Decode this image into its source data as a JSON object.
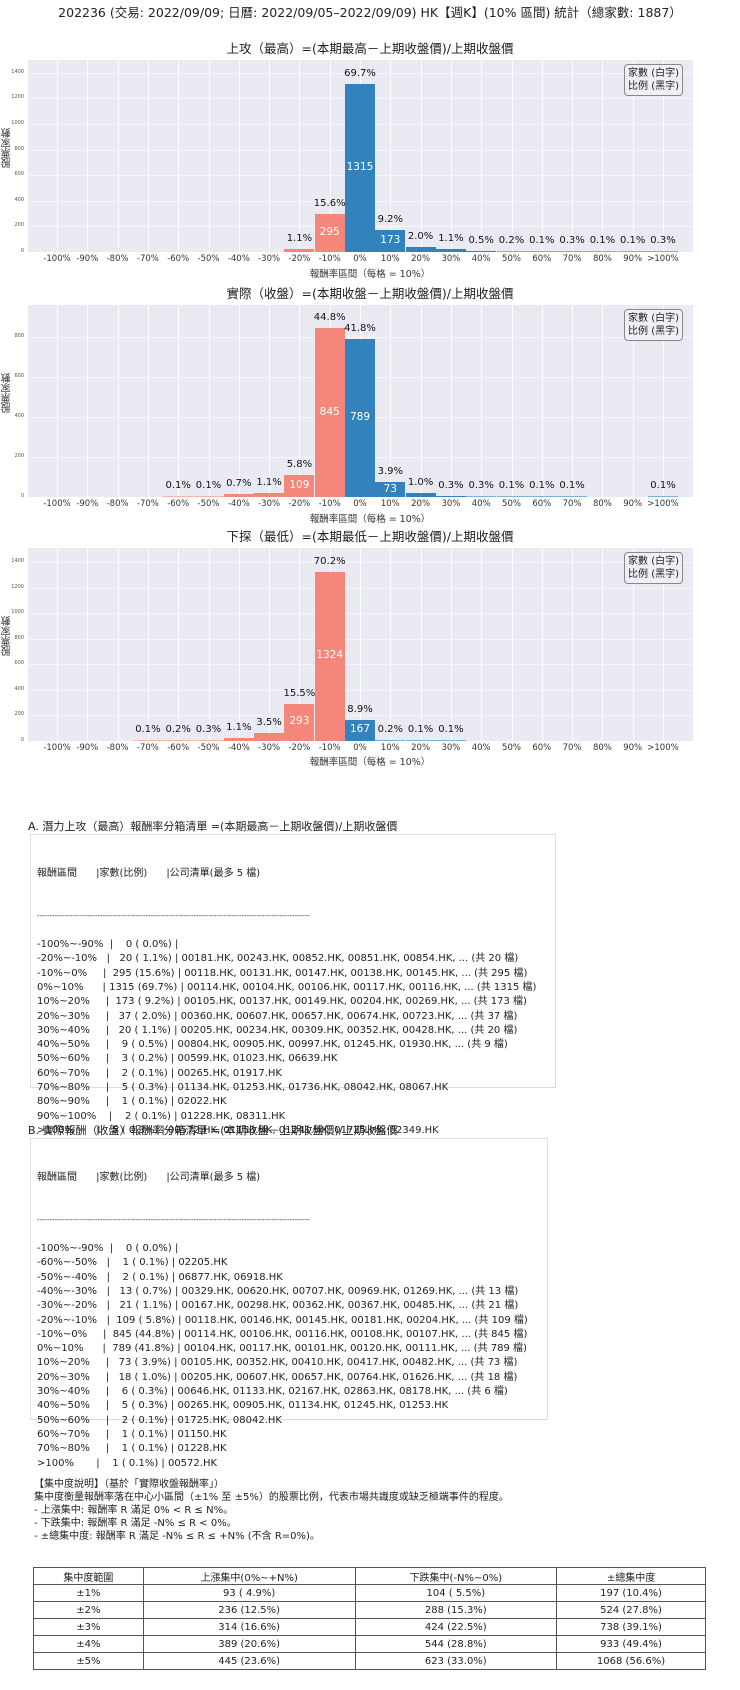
{
  "main_title": "202236 (交易: 2022/09/09; 日曆: 2022/09/05–2022/09/09) HK【週K】(10% 區間) 統計（總家數: 1887）",
  "legend": {
    "line1": "家數 (白字)",
    "line2": "比例 (黑字)"
  },
  "chart_data": [
    {
      "type": "bar",
      "title": "上攻（最高）=(本期最高－上期收盤價)/上期收盤價",
      "xlabel": "報酬率區間（每格 = 10%）",
      "ylabel": "股票家數",
      "categories": [
        "-100%",
        "-90%",
        "-80%",
        "-70%",
        "-60%",
        "-50%",
        "-40%",
        "-30%",
        "-20%",
        "-10%",
        "0%",
        "10%",
        "20%",
        "30%",
        "40%",
        "50%",
        "60%",
        "70%",
        "80%",
        "90%",
        ">100%"
      ],
      "values": [
        0,
        0,
        0,
        0,
        0,
        0,
        0,
        0,
        20,
        295,
        1315,
        173,
        37,
        20,
        9,
        3,
        2,
        5,
        1,
        2,
        5
      ],
      "pct_labels": [
        "",
        "",
        "",
        "",
        "",
        "",
        "",
        "",
        "1.1%",
        "15.6%",
        "69.7%",
        "9.2%",
        "2.0%",
        "1.1%",
        "0.5%",
        "0.2%",
        "0.1%",
        "0.3%",
        "0.1%",
        "0.1%",
        "0.3%"
      ],
      "yticks": [
        0,
        200,
        400,
        600,
        800,
        1000,
        1200,
        1400
      ],
      "ylim": [
        0,
        1500
      ],
      "grid": true,
      "legend_position": "upper right"
    },
    {
      "type": "bar",
      "title": "實際（收盤）=(本期收盤－上期收盤價)/上期收盤價",
      "xlabel": "報酬率區間（每格 = 10%）",
      "ylabel": "股票家數",
      "categories": [
        "-100%",
        "-90%",
        "-80%",
        "-70%",
        "-60%",
        "-50%",
        "-40%",
        "-30%",
        "-20%",
        "-10%",
        "0%",
        "10%",
        "20%",
        "30%",
        "40%",
        "50%",
        "60%",
        "70%",
        "80%",
        "90%",
        ">100%"
      ],
      "values": [
        0,
        0,
        0,
        0,
        1,
        2,
        13,
        21,
        109,
        845,
        789,
        73,
        18,
        6,
        5,
        2,
        1,
        1,
        0,
        0,
        1
      ],
      "pct_labels": [
        "",
        "",
        "",
        "",
        "0.1%",
        "0.1%",
        "0.7%",
        "1.1%",
        "5.8%",
        "44.8%",
        "41.8%",
        "3.9%",
        "1.0%",
        "0.3%",
        "0.3%",
        "0.1%",
        "0.1%",
        "0.1%",
        "",
        "",
        "0.1%"
      ],
      "yticks": [
        0,
        200,
        400,
        600,
        800
      ],
      "ylim": [
        0,
        960
      ],
      "grid": true,
      "legend_position": "upper right"
    },
    {
      "type": "bar",
      "title": "下探（最低）=(本期最低－上期收盤價)/上期收盤價",
      "xlabel": "報酬率區間（每格 = 10%）",
      "ylabel": "股票家數",
      "categories": [
        "-100%",
        "-90%",
        "-80%",
        "-70%",
        "-60%",
        "-50%",
        "-40%",
        "-30%",
        "-20%",
        "-10%",
        "0%",
        "10%",
        "20%",
        "30%",
        "40%",
        "50%",
        "60%",
        "70%",
        "80%",
        "90%",
        ">100%"
      ],
      "values": [
        0,
        0,
        0,
        1,
        3,
        6,
        21,
        66,
        293,
        1324,
        167,
        4,
        2,
        1,
        0,
        0,
        0,
        0,
        0,
        0,
        0
      ],
      "pct_labels": [
        "",
        "",
        "",
        "0.1%",
        "0.2%",
        "0.3%",
        "1.1%",
        "3.5%",
        "15.5%",
        "70.2%",
        "8.9%",
        "0.2%",
        "0.1%",
        "0.1%",
        "",
        "",
        "",
        "",
        "",
        "",
        ""
      ],
      "yticks": [
        0,
        200,
        400,
        600,
        800,
        1000,
        1200,
        1400
      ],
      "ylim": [
        0,
        1510
      ],
      "grid": true,
      "legend_position": "upper right"
    }
  ],
  "section_a": {
    "title": "A. 潛力上攻（最高）報酬率分箱清單 =(本期最高－上期收盤價)/上期收盤價",
    "header": "報酬區間      |家數(比例)      |公司清單(最多 5 檔)",
    "divider": "------------------------------------------------------------------------------------------------------------",
    "rows": [
      "-100%~-90%  |    0 ( 0.0%) |",
      "-20%~-10%   |   20 ( 1.1%) | 00181.HK, 00243.HK, 00852.HK, 00851.HK, 00854.HK, ... (共 20 檔)",
      "-10%~0%     |  295 (15.6%) | 00118.HK, 00131.HK, 00147.HK, 00138.HK, 00145.HK, ... (共 295 檔)",
      "0%~10%      | 1315 (69.7%) | 00114.HK, 00104.HK, 00106.HK, 00117.HK, 00116.HK, ... (共 1315 檔)",
      "10%~20%     |  173 ( 9.2%) | 00105.HK, 00137.HK, 00149.HK, 00204.HK, 00269.HK, ... (共 173 檔)",
      "20%~30%     |   37 ( 2.0%) | 00360.HK, 00607.HK, 00657.HK, 00674.HK, 00723.HK, ... (共 37 檔)",
      "30%~40%     |   20 ( 1.1%) | 00205.HK, 00234.HK, 00309.HK, 00352.HK, 00428.HK, ... (共 20 檔)",
      "40%~50%     |    9 ( 0.5%) | 00804.HK, 00905.HK, 00997.HK, 01245.HK, 01930.HK, ... (共 9 檔)",
      "50%~60%     |    3 ( 0.2%) | 00599.HK, 01023.HK, 06639.HK",
      "60%~70%     |    2 ( 0.1%) | 00265.HK, 01917.HK",
      "70%~80%     |    5 ( 0.3%) | 01134.HK, 01253.HK, 01736.HK, 08042.HK, 08067.HK",
      "80%~90%     |    1 ( 0.1%) | 02022.HK",
      "90%~100%    |    2 ( 0.1%) | 01228.HK, 08311.HK",
      ">100%       |    5 ( 0.3%) | 00572.HK, 01150.HK, 01241.HK, 01725.HK, 02349.HK"
    ]
  },
  "section_b": {
    "title": "B. 實際報酬（收盤）報酬率分箱清單 =(本期收盤－上期收盤價)/上期收盤價",
    "header": "報酬區間      |家數(比例)      |公司清單(最多 5 檔)",
    "divider": "------------------------------------------------------------------------------------------------------------",
    "rows": [
      "-100%~-90%  |    0 ( 0.0%) |",
      "-60%~-50%   |    1 ( 0.1%) | 02205.HK",
      "-50%~-40%   |    2 ( 0.1%) | 06877.HK, 06918.HK",
      "-40%~-30%   |   13 ( 0.7%) | 00329.HK, 00620.HK, 00707.HK, 00969.HK, 01269.HK, ... (共 13 檔)",
      "-30%~-20%   |   21 ( 1.1%) | 00167.HK, 00298.HK, 00362.HK, 00367.HK, 00485.HK, ... (共 21 檔)",
      "-20%~-10%   |  109 ( 5.8%) | 00118.HK, 00146.HK, 00145.HK, 00181.HK, 00204.HK, ... (共 109 檔)",
      "-10%~0%     |  845 (44.8%) | 00114.HK, 00106.HK, 00116.HK, 00108.HK, 00107.HK, ... (共 845 檔)",
      "0%~10%      |  789 (41.8%) | 00104.HK, 00117.HK, 00101.HK, 00120.HK, 00111.HK, ... (共 789 檔)",
      "10%~20%     |   73 ( 3.9%) | 00105.HK, 00352.HK, 00410.HK, 00417.HK, 00482.HK, ... (共 73 檔)",
      "20%~30%     |   18 ( 1.0%) | 00205.HK, 00607.HK, 00657.HK, 00764.HK, 01626.HK, ... (共 18 檔)",
      "30%~40%     |    6 ( 0.3%) | 00646.HK, 01133.HK, 02167.HK, 02863.HK, 08178.HK, ... (共 6 檔)",
      "40%~50%     |    5 ( 0.3%) | 00265.HK, 00905.HK, 01134.HK, 01245.HK, 01253.HK",
      "50%~60%     |    2 ( 0.1%) | 01725.HK, 08042.HK",
      "60%~70%     |    1 ( 0.1%) | 01150.HK",
      "70%~80%     |    1 ( 0.1%) | 01228.HK",
      ">100%       |    1 ( 0.1%) | 00572.HK"
    ]
  },
  "concentration": {
    "heading": "【集中度說明】（基於「實際收盤報酬率」）",
    "desc": "集中度衡量報酬率落在中心小區間（±1% 至 ±5%）的股票比例，代表市場共識度或缺乏極端事件的程度。",
    "bullets": [
      " - 上漲集中: 報酬率 R 滿足 0% < R ≤ N%。",
      " - 下跌集中: 報酬率 R 滿足 -N% ≤ R < 0%。",
      " - ±總集中度: 報酬率 R 滿足 -N% ≤ R ≤ +N% (不含 R=0%)。"
    ],
    "table": {
      "headers": [
        "集中度範圍",
        "上漲集中(0%~+N%)",
        "下跌集中(-N%~0%)",
        "±總集中度"
      ],
      "rows": [
        [
          "±1%",
          "93 ( 4.9%)",
          "104 ( 5.5%)",
          "197 (10.4%)"
        ],
        [
          "±2%",
          "236 (12.5%)",
          "288 (15.3%)",
          "524 (27.8%)"
        ],
        [
          "±3%",
          "314 (16.6%)",
          "424 (22.5%)",
          "738 (39.1%)"
        ],
        [
          "±4%",
          "389 (20.6%)",
          "544 (28.8%)",
          "933 (49.4%)"
        ],
        [
          "±5%",
          "445 (23.6%)",
          "623 (33.0%)",
          "1068 (56.6%)"
        ]
      ]
    }
  }
}
